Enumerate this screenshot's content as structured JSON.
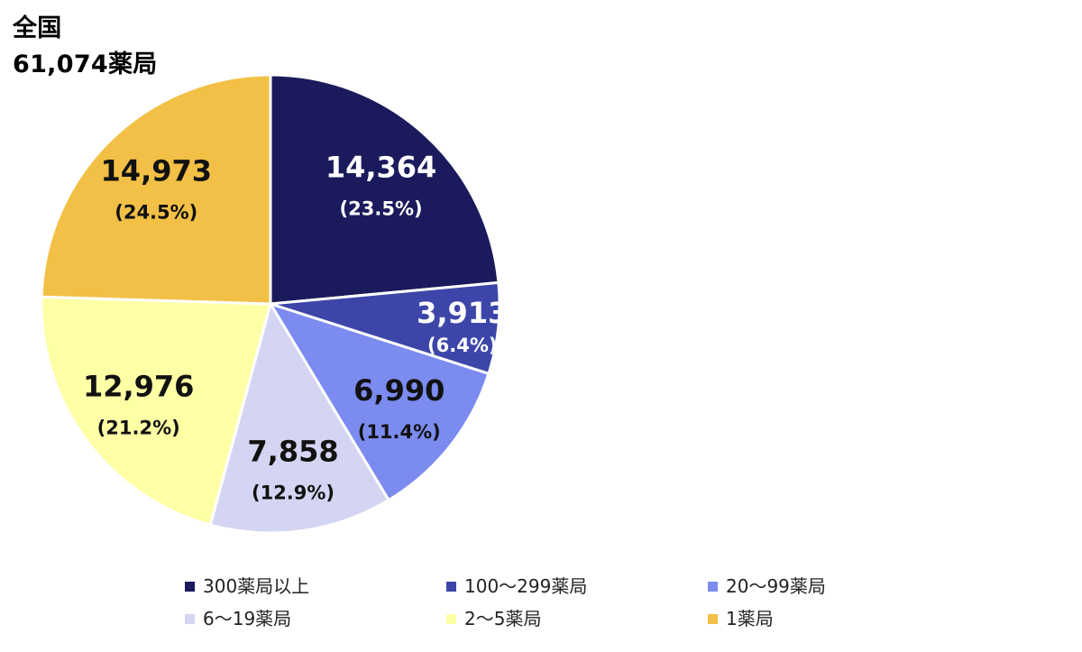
{
  "title": {
    "line1": "全国",
    "line2": "61,074薬局"
  },
  "chart_data": {
    "type": "pie",
    "title": "全国 61,074薬局",
    "total": 61074,
    "start": "12 o'clock, clockwise",
    "slices": [
      {
        "name": "300薬局以上",
        "value": 14364,
        "value_label": "14,364",
        "pct_label": "(23.5%)",
        "color": "#1a1a5c",
        "text_color": "#ffffff"
      },
      {
        "name": "100～299薬局",
        "value": 3913,
        "value_label": "3,913",
        "pct_label": "(6.4%)",
        "color": "#3d46a8",
        "text_color": "#ffffff"
      },
      {
        "name": "20～99薬局",
        "value": 6990,
        "value_label": "6,990",
        "pct_label": "(11.4%)",
        "color": "#7b8bef",
        "text_color": "#111111"
      },
      {
        "name": "6～19薬局",
        "value": 7858,
        "value_label": "7,858",
        "pct_label": "(12.9%)",
        "color": "#d4d5f2",
        "text_color": "#111111"
      },
      {
        "name": "2～5薬局",
        "value": 12976,
        "value_label": "12,976",
        "pct_label": "(21.2%)",
        "color": "#ffffa6",
        "text_color": "#111111"
      },
      {
        "name": "1薬局",
        "value": 14973,
        "value_label": "14,973",
        "pct_label": "(24.5%)",
        "color": "#f2c046",
        "text_color": "#111111"
      }
    ],
    "legend_position": "bottom"
  }
}
